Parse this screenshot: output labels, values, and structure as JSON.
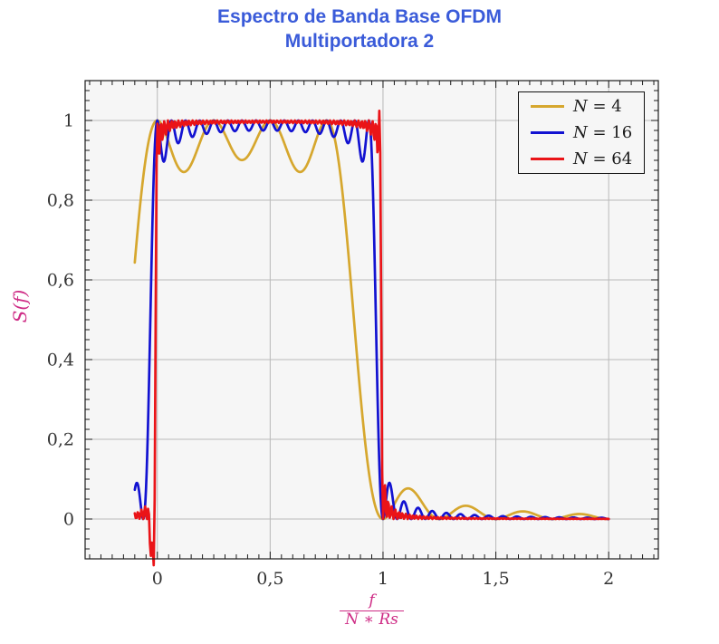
{
  "chart_data": {
    "type": "line",
    "title": "Espectro de Banda Base OFDM",
    "subtitle": "Multiportadora 2",
    "ylabel": "S(f)",
    "xlabel_numerator": "f",
    "xlabel_denominator": "N ∗ Rs",
    "xlim": [
      -0.32,
      2.22
    ],
    "ylim": [
      -0.1,
      1.1
    ],
    "xticks": [
      0,
      0.5,
      1,
      1.5,
      2
    ],
    "xticklabels": [
      "0",
      "0,5",
      "1",
      "1,5",
      "2"
    ],
    "yticks": [
      0,
      0.2,
      0.4,
      0.6,
      0.8,
      1
    ],
    "yticklabels": [
      "0",
      "0,2",
      "0,4",
      "0,6",
      "0,8",
      "1"
    ],
    "minor_x_step": 0.05,
    "minor_y_step": 0.025,
    "grid": true,
    "legend_position": "top-right",
    "plateau_level": 1.0,
    "passband": [
      0,
      1
    ],
    "series": [
      {
        "name": "N = 4",
        "N": 4,
        "color": "#D6A72E",
        "line_width": 2.7,
        "domain": [
          -0.1,
          2
        ],
        "samples": 1000,
        "formula": "S(u) = sum_{k=0}^{N-1} sinc^2(N*u - k),  u = f/(N*Rs)",
        "key_points": [
          [
            -0.1,
            0.64
          ],
          [
            0,
            1.0
          ],
          [
            0.125,
            0.87
          ],
          [
            0.25,
            0.99
          ],
          [
            0.375,
            0.9
          ],
          [
            0.5,
            0.99
          ],
          [
            0.625,
            0.9
          ],
          [
            0.75,
            1.0
          ],
          [
            0.875,
            0.48
          ],
          [
            1.0,
            0.0
          ],
          [
            1.11,
            0.075
          ],
          [
            1.36,
            0.04
          ],
          [
            1.64,
            0.025
          ],
          [
            1.87,
            0.015
          ],
          [
            2.0,
            0.01
          ]
        ]
      },
      {
        "name": "N = 16",
        "N": 16,
        "color": "#1212D1",
        "line_width": 2.7,
        "domain": [
          -0.1,
          2
        ],
        "samples": 800,
        "formula": "S(u) = sum_{k=0}^{N-1} sinc^2(N*u - k),  u = f/(N*Rs)",
        "key_points": [
          [
            -0.094,
            0.07
          ],
          [
            -0.045,
            0.01
          ],
          [
            -0.03,
            0.5
          ],
          [
            0,
            1.0
          ],
          [
            0.031,
            0.88
          ],
          [
            0.5,
            0.97
          ],
          [
            0.9375,
            1.0
          ],
          [
            0.967,
            0.5
          ],
          [
            1.0,
            0.0
          ],
          [
            1.03,
            0.085
          ],
          [
            1.1,
            0.05
          ],
          [
            1.22,
            0.02
          ],
          [
            2.0,
            0.0
          ]
        ]
      },
      {
        "name": "N = 64",
        "N": 64,
        "color": "#EA1418",
        "line_width": 2.7,
        "domain": [
          -0.1,
          2
        ],
        "samples": 500,
        "formula": "S(u) = sum_{k=0}^{N-1} sinc^2(N*u - k),  u = f/(N*Rs)",
        "render_artifacts": [
          {
            "center": -0.022,
            "width": 0.012,
            "amp": -0.15
          },
          {
            "center": 0.984,
            "width": 0.006,
            "amp": 0.028
          }
        ],
        "key_points": [
          [
            -0.1,
            0.01
          ],
          [
            -0.06,
            0.02
          ],
          [
            -0.02,
            -0.05
          ],
          [
            0.008,
            0.5
          ],
          [
            0.016,
            0.98
          ],
          [
            0.5,
            0.99
          ],
          [
            0.978,
            1.02
          ],
          [
            0.99,
            0.5
          ],
          [
            1.0,
            0.0
          ],
          [
            1.01,
            0.05
          ],
          [
            1.1,
            0.01
          ],
          [
            2.0,
            0.0
          ]
        ]
      }
    ],
    "colors": {
      "title": "#3A5BD9",
      "axis_label": "#CE2B85",
      "tick_text": "#333333",
      "grid": "#b9b9b9",
      "frame": "#1b1b1b",
      "plot_bg": "#f6f6f6",
      "page_bg": "#ffffff",
      "legend_border": "#111111"
    }
  }
}
